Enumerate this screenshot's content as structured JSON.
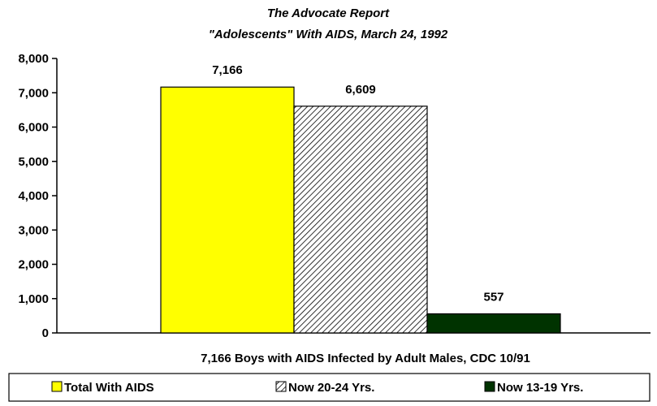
{
  "chart_data": {
    "type": "bar",
    "title": "The Advocate Report",
    "subtitle": "\"Adolescents\"  With AIDS, March 24, 1992",
    "xlabel": "7,166 Boys with AIDS Infected by Adult Males, CDC 10/91",
    "ylabel": "",
    "ylim": [
      0,
      8000
    ],
    "yticks": [
      0,
      1000,
      2000,
      3000,
      4000,
      5000,
      6000,
      7000,
      8000
    ],
    "ytick_labels": [
      "0",
      "1,000",
      "2,000",
      "3,000",
      "4,000",
      "5,000",
      "6,000",
      "7,000",
      "8,000"
    ],
    "grid": false,
    "legend_position": "bottom",
    "series": [
      {
        "name": "Total With AIDS",
        "value": 7166,
        "label": "7,166",
        "color": "#ffff00",
        "pattern": "solid"
      },
      {
        "name": "Now 20-24 Yrs.",
        "value": 6609,
        "label": "6,609",
        "color": "#000000",
        "pattern": "diagonal-hatch"
      },
      {
        "name": "Now 13-19 Yrs.",
        "value": 557,
        "label": "557",
        "color": "#003300",
        "pattern": "solid"
      }
    ]
  }
}
